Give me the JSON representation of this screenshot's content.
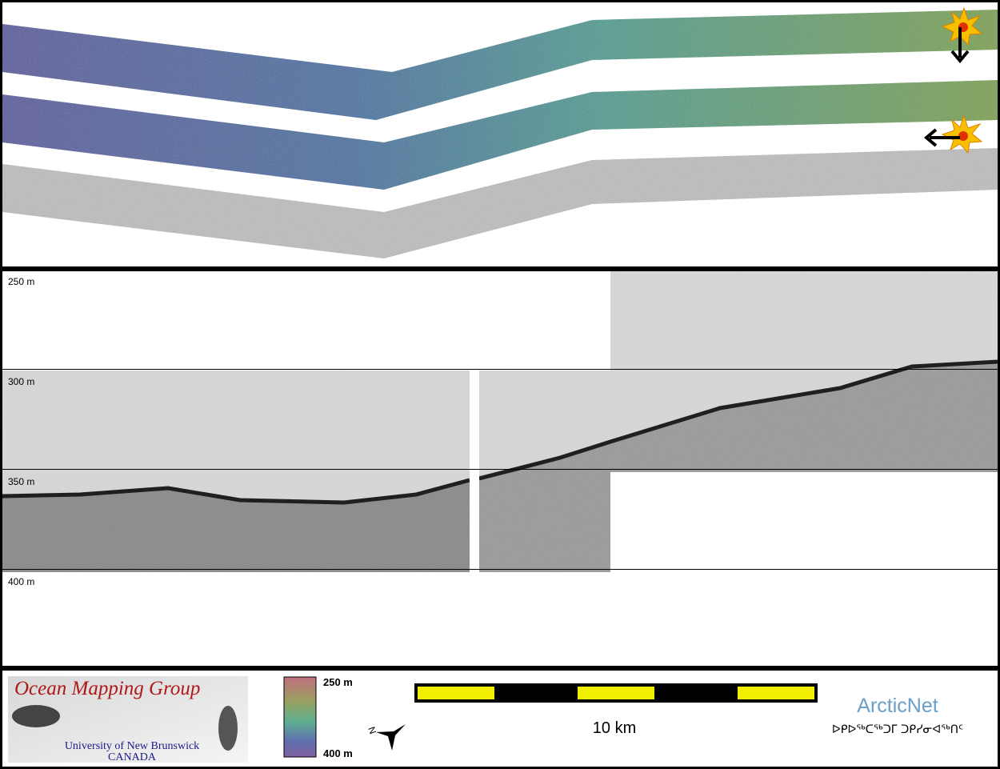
{
  "profile": {
    "depth_labels": [
      "250 m",
      "300 m",
      "350 m",
      "400 m"
    ]
  },
  "footer": {
    "logo": {
      "title": "Ocean Mapping Group",
      "university": "University of New Brunswick",
      "country": "CANADA"
    },
    "colorbar": {
      "top_label": "250 m",
      "bottom_label": "400 m"
    },
    "compass": "N",
    "scalebar": "10 km",
    "partner": {
      "name": "ArcticNet",
      "subtitle": "ᐅᑭᐅᖅᑕᖅᑐᒥ ᑐᑭᓯᓂᐊᖅᑎᑦ"
    }
  }
}
